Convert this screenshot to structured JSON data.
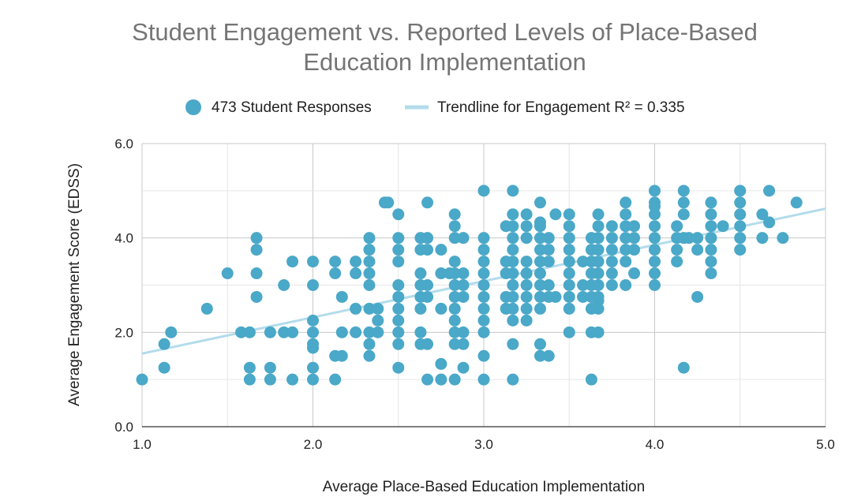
{
  "colors": {
    "points": "#4aa8c8",
    "trendline": "#b3dceb",
    "grid": "#cccccc",
    "title": "#757575"
  },
  "chart_data": {
    "type": "scatter",
    "title_lines": [
      "Student Engagement vs. Reported Levels of Place-Based",
      "Education Implementation"
    ],
    "xlabel": "Average Place-Based Education Implementation",
    "ylabel": "Average Engagement Score (EDSS)",
    "xlim": [
      1.0,
      5.0
    ],
    "ylim": [
      0.0,
      6.0
    ],
    "x_ticks": [
      "1.0",
      "2.0",
      "3.0",
      "4.0",
      "5.0"
    ],
    "y_ticks": [
      "0.0",
      "2.0",
      "4.0",
      "6.0"
    ],
    "legend": {
      "position": "top-center",
      "series_label": "473 Student Responses",
      "trendline_label": "Trendline for Engagement R² = 0.335"
    },
    "trendline": {
      "x": [
        1.0,
        5.0
      ],
      "y": [
        1.55,
        4.62
      ]
    },
    "points": [
      [
        1.0,
        1.0
      ],
      [
        1.13,
        1.75
      ],
      [
        1.13,
        1.25
      ],
      [
        1.17,
        2.0
      ],
      [
        1.38,
        2.5
      ],
      [
        1.5,
        3.25
      ],
      [
        1.58,
        2.0
      ],
      [
        1.63,
        2.0
      ],
      [
        1.63,
        1.25
      ],
      [
        1.63,
        1.0
      ],
      [
        1.67,
        4.0
      ],
      [
        1.67,
        3.75
      ],
      [
        1.67,
        3.25
      ],
      [
        1.67,
        2.75
      ],
      [
        1.75,
        2.0
      ],
      [
        1.75,
        1.25
      ],
      [
        1.75,
        1.0
      ],
      [
        1.83,
        3.0
      ],
      [
        1.83,
        2.0
      ],
      [
        1.88,
        3.5
      ],
      [
        1.88,
        2.0
      ],
      [
        1.88,
        1.0
      ],
      [
        2.0,
        3.5
      ],
      [
        2.0,
        3.0
      ],
      [
        2.0,
        2.25
      ],
      [
        2.0,
        2.0
      ],
      [
        2.0,
        1.75
      ],
      [
        2.0,
        1.67
      ],
      [
        2.0,
        1.25
      ],
      [
        2.0,
        1.0
      ],
      [
        2.13,
        3.5
      ],
      [
        2.13,
        3.25
      ],
      [
        2.13,
        1.5
      ],
      [
        2.13,
        1.0
      ],
      [
        2.17,
        2.75
      ],
      [
        2.17,
        2.0
      ],
      [
        2.17,
        1.5
      ],
      [
        2.25,
        3.5
      ],
      [
        2.25,
        3.25
      ],
      [
        2.25,
        2.5
      ],
      [
        2.25,
        2.0
      ],
      [
        2.33,
        4.0
      ],
      [
        2.33,
        3.75
      ],
      [
        2.33,
        3.5
      ],
      [
        2.33,
        3.25
      ],
      [
        2.33,
        3.0
      ],
      [
        2.33,
        2.5
      ],
      [
        2.33,
        2.0
      ],
      [
        2.33,
        1.75
      ],
      [
        2.33,
        1.5
      ],
      [
        2.38,
        2.5
      ],
      [
        2.38,
        2.25
      ],
      [
        2.38,
        2.0
      ],
      [
        2.42,
        4.75
      ],
      [
        2.44,
        4.75
      ],
      [
        2.5,
        4.5
      ],
      [
        2.5,
        4.0
      ],
      [
        2.5,
        3.75
      ],
      [
        2.5,
        3.5
      ],
      [
        2.5,
        3.0
      ],
      [
        2.5,
        2.75
      ],
      [
        2.5,
        2.5
      ],
      [
        2.5,
        2.25
      ],
      [
        2.5,
        2.0
      ],
      [
        2.5,
        1.75
      ],
      [
        2.5,
        1.25
      ],
      [
        2.63,
        4.0
      ],
      [
        2.63,
        3.75
      ],
      [
        2.63,
        3.25
      ],
      [
        2.63,
        3.0
      ],
      [
        2.63,
        2.75
      ],
      [
        2.63,
        2.5
      ],
      [
        2.63,
        2.0
      ],
      [
        2.63,
        1.75
      ],
      [
        2.67,
        4.75
      ],
      [
        2.67,
        4.0
      ],
      [
        2.67,
        3.75
      ],
      [
        2.67,
        3.0
      ],
      [
        2.67,
        2.75
      ],
      [
        2.67,
        1.75
      ],
      [
        2.67,
        1.0
      ],
      [
        2.75,
        3.75
      ],
      [
        2.75,
        3.25
      ],
      [
        2.75,
        2.5
      ],
      [
        2.75,
        1.33
      ],
      [
        2.75,
        1.0
      ],
      [
        2.8,
        3.25
      ],
      [
        2.83,
        4.5
      ],
      [
        2.83,
        4.25
      ],
      [
        2.83,
        4.0
      ],
      [
        2.83,
        3.5
      ],
      [
        2.83,
        3.25
      ],
      [
        2.83,
        3.0
      ],
      [
        2.83,
        2.75
      ],
      [
        2.83,
        2.5
      ],
      [
        2.83,
        2.25
      ],
      [
        2.83,
        2.0
      ],
      [
        2.83,
        1.75
      ],
      [
        2.83,
        1.0
      ],
      [
        2.88,
        4.0
      ],
      [
        2.88,
        3.25
      ],
      [
        2.88,
        3.0
      ],
      [
        2.88,
        2.75
      ],
      [
        2.88,
        2.0
      ],
      [
        2.88,
        1.75
      ],
      [
        2.88,
        1.25
      ],
      [
        3.0,
        5.0
      ],
      [
        3.0,
        4.0
      ],
      [
        3.0,
        3.75
      ],
      [
        3.0,
        3.5
      ],
      [
        3.0,
        3.25
      ],
      [
        3.0,
        3.0
      ],
      [
        3.0,
        2.75
      ],
      [
        3.0,
        2.5
      ],
      [
        3.0,
        2.25
      ],
      [
        3.0,
        2.0
      ],
      [
        3.0,
        1.5
      ],
      [
        3.0,
        1.0
      ],
      [
        3.13,
        4.25
      ],
      [
        3.13,
        3.5
      ],
      [
        3.13,
        3.25
      ],
      [
        3.13,
        2.75
      ],
      [
        3.13,
        2.5
      ],
      [
        3.17,
        5.0
      ],
      [
        3.17,
        4.5
      ],
      [
        3.17,
        4.25
      ],
      [
        3.17,
        4.0
      ],
      [
        3.17,
        3.75
      ],
      [
        3.17,
        3.5
      ],
      [
        3.17,
        3.25
      ],
      [
        3.17,
        3.0
      ],
      [
        3.17,
        2.75
      ],
      [
        3.17,
        2.5
      ],
      [
        3.17,
        2.25
      ],
      [
        3.17,
        1.75
      ],
      [
        3.17,
        1.0
      ],
      [
        3.25,
        4.5
      ],
      [
        3.25,
        4.25
      ],
      [
        3.25,
        4.0
      ],
      [
        3.25,
        3.5
      ],
      [
        3.25,
        3.25
      ],
      [
        3.25,
        3.0
      ],
      [
        3.25,
        2.75
      ],
      [
        3.25,
        2.5
      ],
      [
        3.25,
        2.25
      ],
      [
        3.33,
        4.75
      ],
      [
        3.33,
        4.33
      ],
      [
        3.33,
        4.25
      ],
      [
        3.33,
        4.0
      ],
      [
        3.33,
        3.75
      ],
      [
        3.33,
        3.5
      ],
      [
        3.33,
        3.25
      ],
      [
        3.33,
        3.0
      ],
      [
        3.33,
        2.75
      ],
      [
        3.33,
        2.5
      ],
      [
        3.33,
        1.75
      ],
      [
        3.33,
        1.5
      ],
      [
        3.38,
        4.0
      ],
      [
        3.38,
        3.75
      ],
      [
        3.38,
        3.5
      ],
      [
        3.38,
        3.0
      ],
      [
        3.38,
        2.75
      ],
      [
        3.38,
        1.5
      ],
      [
        3.42,
        4.5
      ],
      [
        3.42,
        2.75
      ],
      [
        3.5,
        4.5
      ],
      [
        3.5,
        4.25
      ],
      [
        3.5,
        4.0
      ],
      [
        3.5,
        3.75
      ],
      [
        3.5,
        3.5
      ],
      [
        3.5,
        3.25
      ],
      [
        3.5,
        3.0
      ],
      [
        3.5,
        2.75
      ],
      [
        3.5,
        2.5
      ],
      [
        3.5,
        2.0
      ],
      [
        3.58,
        3.5
      ],
      [
        3.58,
        3.0
      ],
      [
        3.58,
        2.75
      ],
      [
        3.63,
        4.0
      ],
      [
        3.63,
        3.75
      ],
      [
        3.63,
        3.5
      ],
      [
        3.63,
        3.25
      ],
      [
        3.63,
        3.0
      ],
      [
        3.63,
        2.75
      ],
      [
        3.63,
        2.5
      ],
      [
        3.63,
        2.0
      ],
      [
        3.63,
        1.0
      ],
      [
        3.67,
        4.5
      ],
      [
        3.67,
        4.25
      ],
      [
        3.67,
        4.0
      ],
      [
        3.67,
        3.75
      ],
      [
        3.67,
        3.5
      ],
      [
        3.67,
        3.25
      ],
      [
        3.67,
        3.0
      ],
      [
        3.67,
        2.75
      ],
      [
        3.67,
        2.67
      ],
      [
        3.67,
        2.5
      ],
      [
        3.67,
        2.0
      ],
      [
        3.75,
        4.25
      ],
      [
        3.75,
        4.0
      ],
      [
        3.75,
        3.75
      ],
      [
        3.75,
        3.5
      ],
      [
        3.75,
        3.25
      ],
      [
        3.75,
        3.0
      ],
      [
        3.83,
        4.75
      ],
      [
        3.83,
        4.5
      ],
      [
        3.83,
        4.25
      ],
      [
        3.83,
        4.0
      ],
      [
        3.83,
        3.75
      ],
      [
        3.83,
        3.5
      ],
      [
        3.83,
        3.0
      ],
      [
        3.88,
        4.25
      ],
      [
        3.88,
        4.0
      ],
      [
        3.88,
        3.75
      ],
      [
        3.88,
        3.25
      ],
      [
        4.0,
        5.0
      ],
      [
        4.0,
        4.75
      ],
      [
        4.0,
        4.67
      ],
      [
        4.0,
        4.5
      ],
      [
        4.0,
        4.25
      ],
      [
        4.0,
        4.0
      ],
      [
        4.0,
        3.75
      ],
      [
        4.0,
        3.5
      ],
      [
        4.0,
        3.25
      ],
      [
        4.0,
        3.0
      ],
      [
        4.13,
        4.25
      ],
      [
        4.13,
        4.0
      ],
      [
        4.13,
        3.75
      ],
      [
        4.13,
        3.5
      ],
      [
        4.17,
        5.0
      ],
      [
        4.17,
        4.75
      ],
      [
        4.17,
        4.5
      ],
      [
        4.17,
        4.0
      ],
      [
        4.17,
        1.25
      ],
      [
        4.2,
        4.0
      ],
      [
        4.25,
        4.0
      ],
      [
        4.25,
        3.75
      ],
      [
        4.25,
        2.75
      ],
      [
        4.33,
        4.75
      ],
      [
        4.33,
        4.5
      ],
      [
        4.33,
        4.25
      ],
      [
        4.33,
        4.0
      ],
      [
        4.33,
        3.75
      ],
      [
        4.33,
        3.5
      ],
      [
        4.33,
        3.25
      ],
      [
        4.4,
        4.25
      ],
      [
        4.5,
        5.0
      ],
      [
        4.5,
        4.75
      ],
      [
        4.5,
        4.5
      ],
      [
        4.5,
        4.25
      ],
      [
        4.5,
        4.0
      ],
      [
        4.5,
        3.75
      ],
      [
        4.63,
        4.5
      ],
      [
        4.63,
        4.0
      ],
      [
        4.67,
        5.0
      ],
      [
        4.67,
        4.33
      ],
      [
        4.75,
        4.0
      ],
      [
        4.83,
        4.75
      ]
    ]
  }
}
